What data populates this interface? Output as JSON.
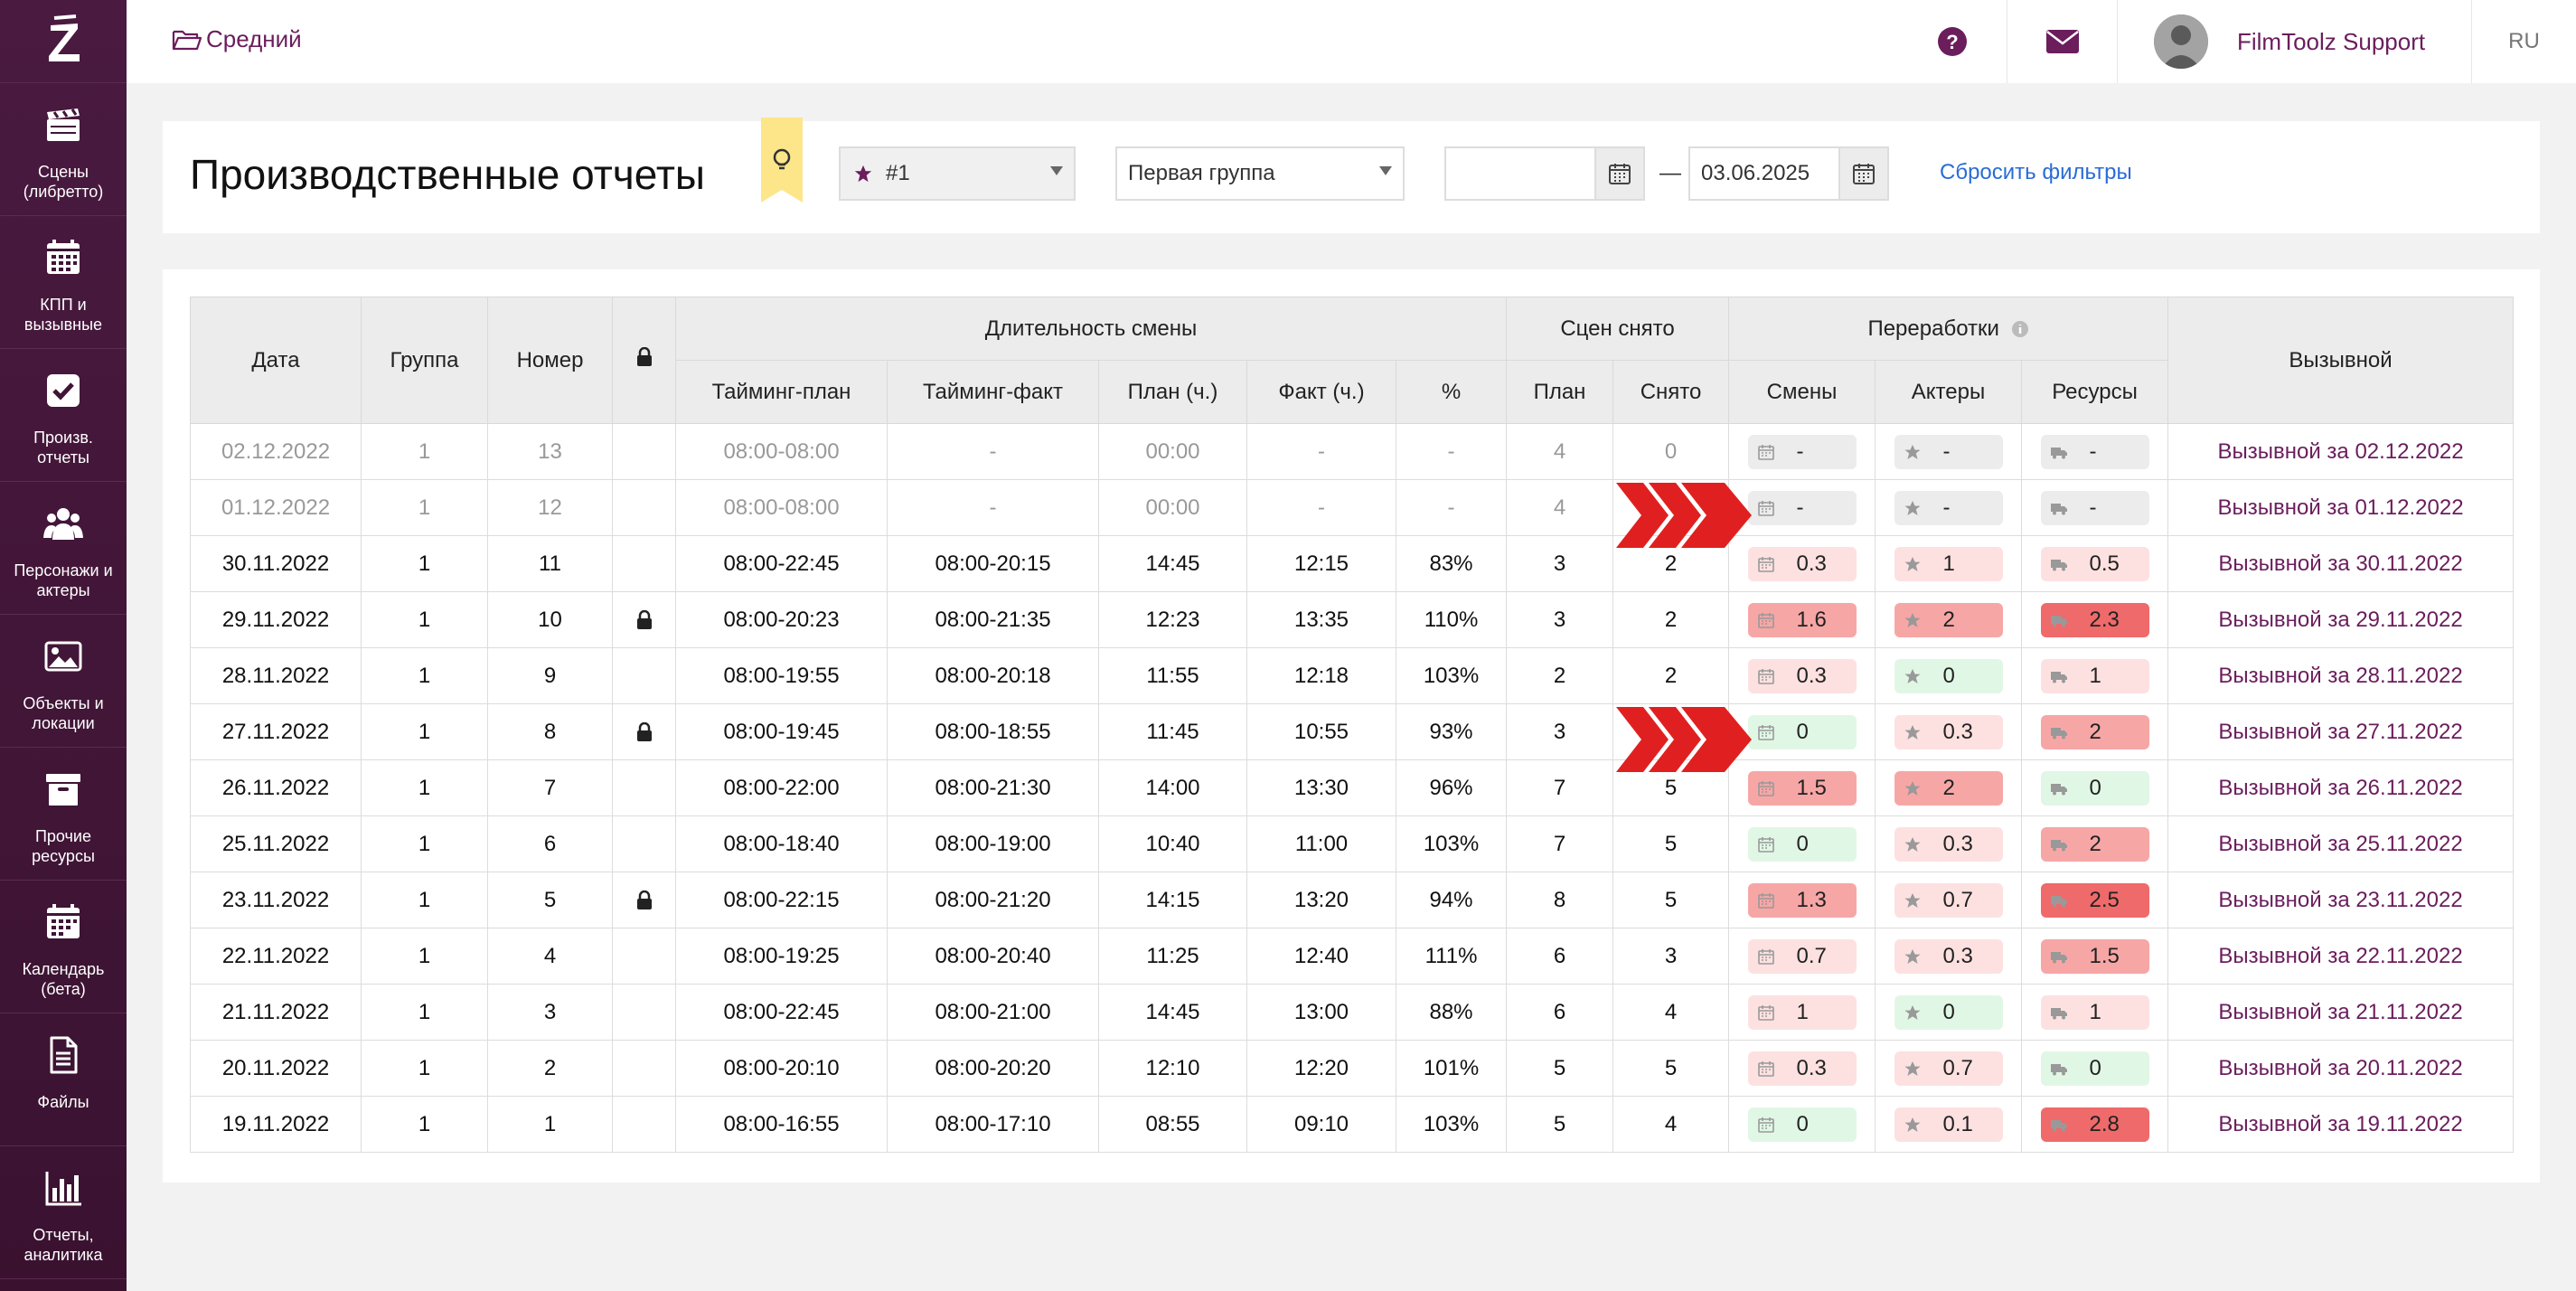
{
  "sidebar": {
    "items": [
      {
        "label": "Сцены (либретто)",
        "icon": "clapperboard-icon"
      },
      {
        "label": "КПП и вызывные",
        "icon": "calendar-grid-icon"
      },
      {
        "label": "Произв. отчеты",
        "icon": "checkbox-icon"
      },
      {
        "label": "Персонажи и актеры",
        "icon": "users-icon"
      },
      {
        "label": "Объекты и локации",
        "icon": "image-icon"
      },
      {
        "label": "Прочие ресурсы",
        "icon": "archive-icon"
      },
      {
        "label": "Календарь (бета)",
        "icon": "calendar-icon"
      },
      {
        "label": "Файлы",
        "icon": "file-icon"
      },
      {
        "label": "Отчеты, аналитика",
        "icon": "bar-chart-icon"
      }
    ]
  },
  "topbar": {
    "project": "Средний",
    "user_name": "FilmToolz Support",
    "lang": "RU"
  },
  "filters": {
    "title": "Производственные отчеты",
    "star_select": "#1",
    "group_select": "Первая группа",
    "date_from": "",
    "date_to": "03.06.2025",
    "dash": "—",
    "reset": "Сбросить фильтры"
  },
  "table": {
    "headers": {
      "date": "Дата",
      "group": "Группа",
      "number": "Номер",
      "duration": "Длительность смены",
      "timing_plan": "Тайминг-план",
      "timing_fact": "Тайминг-факт",
      "plan_h": "План (ч.)",
      "fact_h": "Факт (ч.)",
      "percent": "%",
      "scenes": "Сцен снято",
      "scenes_plan": "План",
      "scenes_done": "Снято",
      "overtime": "Переработки",
      "ot_shifts": "Смены",
      "ot_actors": "Актеры",
      "ot_resources": "Ресурсы",
      "call": "Вызывной"
    },
    "rows": [
      {
        "date": "02.12.2022",
        "group": "1",
        "num": "13",
        "lock": false,
        "tplan": "08:00-08:00",
        "tfact": "-",
        "planh": "00:00",
        "facth": "-",
        "pct": "-",
        "sp": "4",
        "sd": "0",
        "os": "-",
        "oa": "-",
        "or": "-",
        "osc": "c0",
        "oac": "c0",
        "orc": "c0",
        "call": "Вызывной за 02.12.2022",
        "muted": true
      },
      {
        "date": "01.12.2022",
        "group": "1",
        "num": "12",
        "lock": false,
        "tplan": "08:00-08:00",
        "tfact": "-",
        "planh": "00:00",
        "facth": "-",
        "pct": "-",
        "sp": "4",
        "sd": "",
        "os": "-",
        "oa": "-",
        "or": "-",
        "osc": "c0",
        "oac": "c0",
        "orc": "c0",
        "call": "Вызывной за 01.12.2022",
        "muted": true
      },
      {
        "date": "30.11.2022",
        "group": "1",
        "num": "11",
        "lock": false,
        "tplan": "08:00-22:45",
        "tfact": "08:00-20:15",
        "planh": "14:45",
        "facth": "12:15",
        "pct": "83%",
        "sp": "3",
        "sd": "2",
        "os": "0.3",
        "oa": "1",
        "or": "0.5",
        "osc": "c1",
        "oac": "c1",
        "orc": "c1",
        "call": "Вызывной за 30.11.2022",
        "muted": false
      },
      {
        "date": "29.11.2022",
        "group": "1",
        "num": "10",
        "lock": true,
        "tplan": "08:00-20:23",
        "tfact": "08:00-21:35",
        "planh": "12:23",
        "facth": "13:35",
        "pct": "110%",
        "sp": "3",
        "sd": "2",
        "os": "1.6",
        "oa": "2",
        "or": "2.3",
        "osc": "c2",
        "oac": "c2",
        "orc": "c3",
        "call": "Вызывной за 29.11.2022",
        "muted": false
      },
      {
        "date": "28.11.2022",
        "group": "1",
        "num": "9",
        "lock": false,
        "tplan": "08:00-19:55",
        "tfact": "08:00-20:18",
        "planh": "11:55",
        "facth": "12:18",
        "pct": "103%",
        "sp": "2",
        "sd": "2",
        "os": "0.3",
        "oa": "0",
        "or": "1",
        "osc": "c1",
        "oac": "cg",
        "orc": "c1",
        "call": "Вызывной за 28.11.2022",
        "muted": false
      },
      {
        "date": "27.11.2022",
        "group": "1",
        "num": "8",
        "lock": true,
        "tplan": "08:00-19:45",
        "tfact": "08:00-18:55",
        "planh": "11:45",
        "facth": "10:55",
        "pct": "93%",
        "sp": "3",
        "sd": "",
        "os": "0",
        "oa": "0.3",
        "or": "2",
        "osc": "cg",
        "oac": "c1",
        "orc": "c2",
        "call": "Вызывной за 27.11.2022",
        "muted": false
      },
      {
        "date": "26.11.2022",
        "group": "1",
        "num": "7",
        "lock": false,
        "tplan": "08:00-22:00",
        "tfact": "08:00-21:30",
        "planh": "14:00",
        "facth": "13:30",
        "pct": "96%",
        "sp": "7",
        "sd": "5",
        "os": "1.5",
        "oa": "2",
        "or": "0",
        "osc": "c2",
        "oac": "c2",
        "orc": "cg",
        "call": "Вызывной за 26.11.2022",
        "muted": false
      },
      {
        "date": "25.11.2022",
        "group": "1",
        "num": "6",
        "lock": false,
        "tplan": "08:00-18:40",
        "tfact": "08:00-19:00",
        "planh": "10:40",
        "facth": "11:00",
        "pct": "103%",
        "sp": "7",
        "sd": "5",
        "os": "0",
        "oa": "0.3",
        "or": "2",
        "osc": "cg",
        "oac": "c1",
        "orc": "c2",
        "call": "Вызывной за 25.11.2022",
        "muted": false
      },
      {
        "date": "23.11.2022",
        "group": "1",
        "num": "5",
        "lock": true,
        "tplan": "08:00-22:15",
        "tfact": "08:00-21:20",
        "planh": "14:15",
        "facth": "13:20",
        "pct": "94%",
        "sp": "8",
        "sd": "5",
        "os": "1.3",
        "oa": "0.7",
        "or": "2.5",
        "osc": "c2",
        "oac": "c1",
        "orc": "c3",
        "call": "Вызывной за 23.11.2022",
        "muted": false
      },
      {
        "date": "22.11.2022",
        "group": "1",
        "num": "4",
        "lock": false,
        "tplan": "08:00-19:25",
        "tfact": "08:00-20:40",
        "planh": "11:25",
        "facth": "12:40",
        "pct": "111%",
        "sp": "6",
        "sd": "3",
        "os": "0.7",
        "oa": "0.3",
        "or": "1.5",
        "osc": "c1",
        "oac": "c1",
        "orc": "c2",
        "call": "Вызывной за 22.11.2022",
        "muted": false
      },
      {
        "date": "21.11.2022",
        "group": "1",
        "num": "3",
        "lock": false,
        "tplan": "08:00-22:45",
        "tfact": "08:00-21:00",
        "planh": "14:45",
        "facth": "13:00",
        "pct": "88%",
        "sp": "6",
        "sd": "4",
        "os": "1",
        "oa": "0",
        "or": "1",
        "osc": "c1",
        "oac": "cg",
        "orc": "c1",
        "call": "Вызывной за 21.11.2022",
        "muted": false
      },
      {
        "date": "20.11.2022",
        "group": "1",
        "num": "2",
        "lock": false,
        "tplan": "08:00-20:10",
        "tfact": "08:00-20:20",
        "planh": "12:10",
        "facth": "12:20",
        "pct": "101%",
        "sp": "5",
        "sd": "5",
        "os": "0.3",
        "oa": "0.7",
        "or": "0",
        "osc": "c1",
        "oac": "c1",
        "orc": "cg",
        "call": "Вызывной за 20.11.2022",
        "muted": false
      },
      {
        "date": "19.11.2022",
        "group": "1",
        "num": "1",
        "lock": false,
        "tplan": "08:00-16:55",
        "tfact": "08:00-17:10",
        "planh": "08:55",
        "facth": "09:10",
        "pct": "103%",
        "sp": "5",
        "sd": "4",
        "os": "0",
        "oa": "0.1",
        "or": "2.8",
        "osc": "cg",
        "oac": "c1",
        "orc": "c3",
        "call": "Вызывной за 19.11.2022",
        "muted": false
      }
    ]
  },
  "colors": {
    "brand": "#6b1d5c",
    "link": "#2a6cd4",
    "arrow": "#e02020"
  }
}
